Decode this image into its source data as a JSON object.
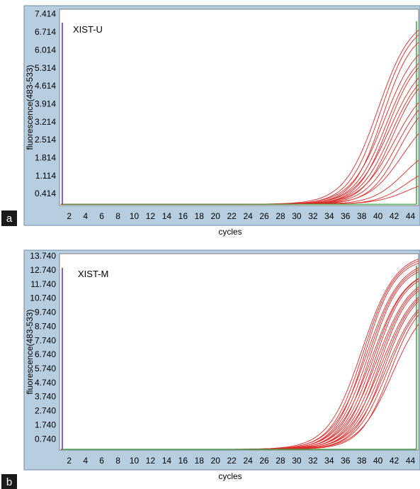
{
  "chart_data": [
    {
      "type": "line",
      "panel_label": "a",
      "title": "XIST-U",
      "xlabel": "cycles",
      "ylabel": "fluorescence(483-533)",
      "x_ticks": [
        2,
        4,
        6,
        8,
        10,
        12,
        14,
        16,
        18,
        20,
        22,
        24,
        26,
        28,
        30,
        32,
        34,
        36,
        38,
        40,
        42,
        44
      ],
      "y_ticks": [
        "0.414",
        "1.114",
        "1.814",
        "2.514",
        "3.214",
        "3.914",
        "4.614",
        "5.314",
        "6.014",
        "6.714",
        "7.414"
      ],
      "xlim": [
        0.8,
        45
      ],
      "ylim": [
        -0.05,
        7.6
      ],
      "baseline": 0.0,
      "line_color": "#dd2a2a",
      "baseline_color": "#3aa53a",
      "marker_color": "#3a3ac8",
      "plateau_values": [
        7.4,
        7.2,
        6.9,
        6.6,
        6.2,
        6.0,
        5.8,
        5.5,
        5.3,
        4.9,
        4.6,
        4.3,
        3.8,
        2.4,
        1.6,
        1.1
      ],
      "midpoint_cycles": [
        40.0,
        40.3,
        40.6,
        40.8,
        41.0,
        41.2,
        41.4,
        41.6,
        41.8,
        42.0,
        42.3,
        42.6,
        43.0,
        43.2,
        43.5,
        43.8
      ]
    },
    {
      "type": "line",
      "panel_label": "b",
      "title": "XIST-M",
      "xlabel": "cycles",
      "ylabel": "fluorescence(483-533)",
      "x_ticks": [
        2,
        4,
        6,
        8,
        10,
        12,
        14,
        16,
        18,
        20,
        22,
        24,
        26,
        28,
        30,
        32,
        34,
        36,
        38,
        40,
        42,
        44
      ],
      "y_ticks": [
        "0.740",
        "1.740",
        "2.740",
        "3.740",
        "4.740",
        "5.740",
        "6.740",
        "7.740",
        "8.740",
        "9.740",
        "10.740",
        "11.740",
        "12.740",
        "13.740"
      ],
      "xlim": [
        0.8,
        45
      ],
      "ylim": [
        -0.05,
        13.9
      ],
      "baseline": 0.0,
      "line_color": "#dd2a2a",
      "baseline_color": "#3aa53a",
      "marker_color": "#3a3ac8",
      "plateau_values": [
        14.0,
        13.8,
        13.6,
        13.5,
        13.3,
        13.1,
        12.9,
        12.8,
        12.6,
        12.5,
        12.3,
        12.1,
        12.0,
        11.8,
        11.6,
        11.4,
        11.2,
        11.0,
        10.8
      ],
      "midpoint_cycles": [
        38.0,
        38.2,
        38.4,
        38.6,
        38.8,
        39.0,
        39.2,
        39.4,
        39.6,
        39.8,
        40.0,
        40.2,
        40.4,
        40.6,
        40.8,
        41.0,
        41.2,
        41.5,
        41.8
      ]
    }
  ]
}
